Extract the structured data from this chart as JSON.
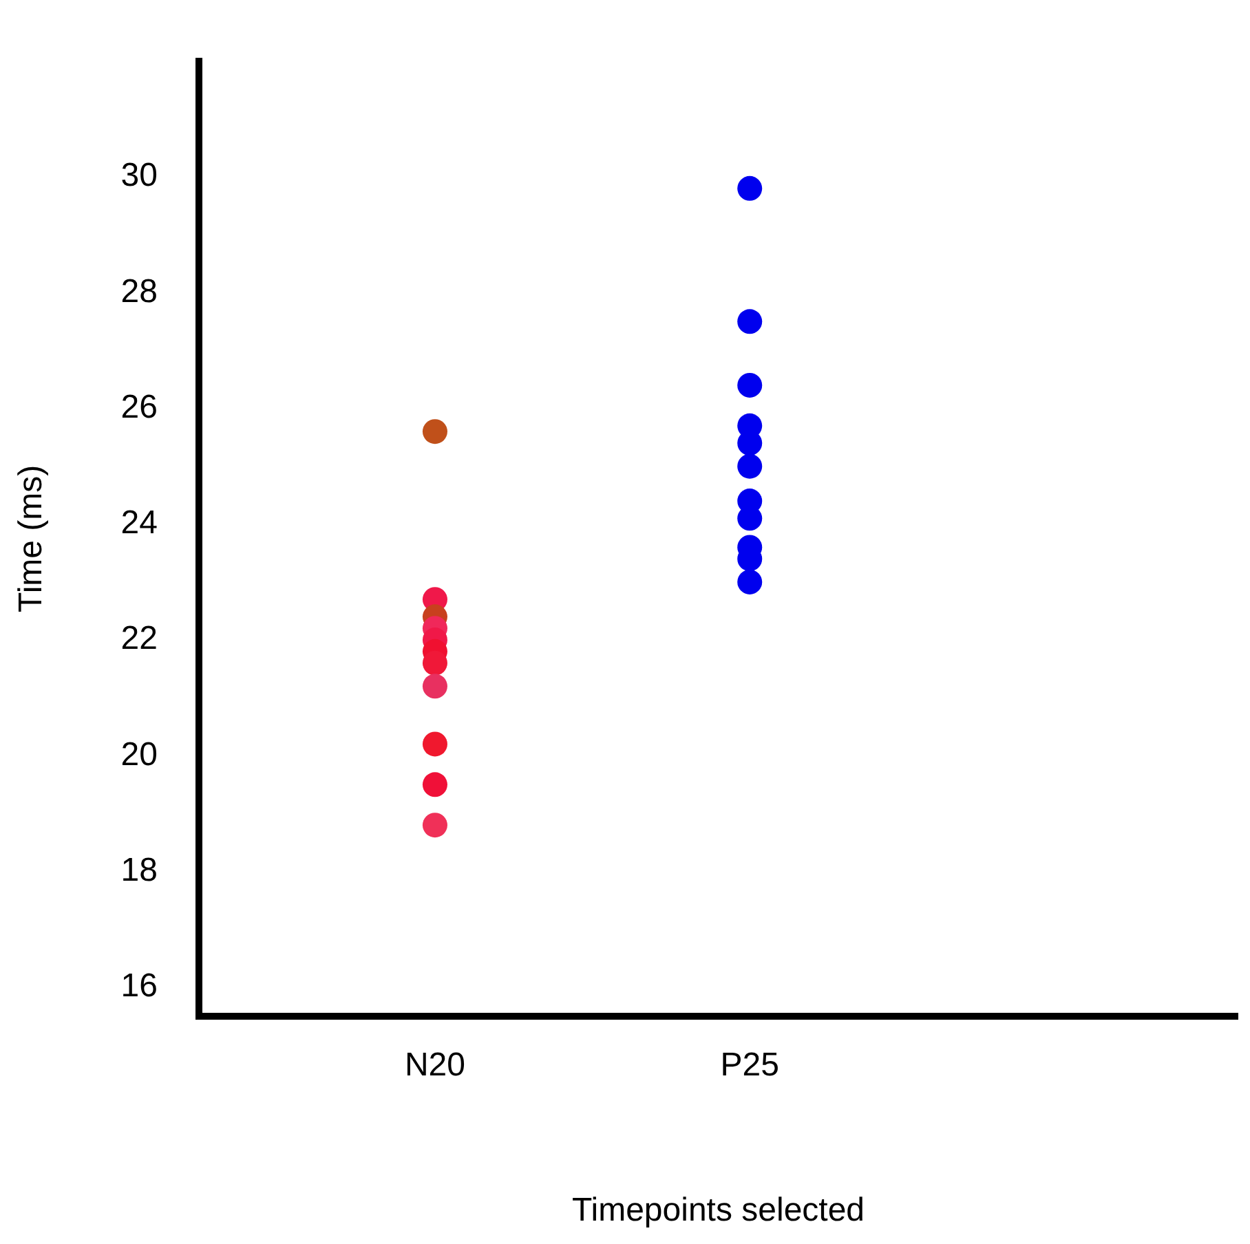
{
  "chart_data": {
    "type": "scatter",
    "xlabel": "Timepoints selected",
    "ylabel": "Time (ms)",
    "categories": [
      "N20",
      "P25"
    ],
    "ylim": [
      15.5,
      32
    ],
    "yticks": [
      16,
      18,
      20,
      22,
      24,
      26,
      28,
      30
    ],
    "grid": false,
    "legend": false,
    "marker": "circle",
    "series": [
      {
        "x": [
          "N20",
          "N20",
          "N20",
          "N20",
          "N20",
          "N20",
          "N20",
          "N20",
          "N20",
          "N20",
          "N20",
          "N20"
        ],
        "values": [
          25.6,
          22.7,
          22.4,
          22.2,
          22.0,
          21.8,
          21.6,
          null,
          21.2,
          20.2,
          19.5,
          18.8
        ],
        "colors": [
          "#c0501a",
          "#f0184a",
          "#c8401e",
          "#f0285a",
          "#f01848",
          "#f01030",
          "#f01838",
          "#e82a58",
          "#e83060",
          "#f0182e",
          "#f01038",
          "#f03058"
        ]
      },
      {
        "x": [
          "P25",
          "P25",
          "P25",
          "P25",
          "P25",
          "P25",
          "P25",
          "P25",
          "P25",
          "P25",
          "P25"
        ],
        "values": [
          29.8,
          27.5,
          26.4,
          25.7,
          25.4,
          25.0,
          24.4,
          24.1,
          23.6,
          23.4,
          23.0
        ],
        "color": "#0000ee"
      }
    ]
  }
}
